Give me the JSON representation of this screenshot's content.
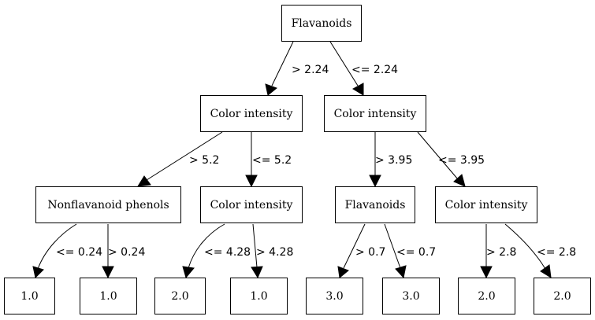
{
  "tree": {
    "nodes": [
      {
        "id": "n0",
        "label": "Flavanoids"
      },
      {
        "id": "n1",
        "label": "Color intensity"
      },
      {
        "id": "n2",
        "label": "Color intensity"
      },
      {
        "id": "n3",
        "label": "Nonflavanoid phenols"
      },
      {
        "id": "n4",
        "label": "Color intensity"
      },
      {
        "id": "n5",
        "label": "Flavanoids"
      },
      {
        "id": "n6",
        "label": "Color intensity"
      },
      {
        "id": "n7",
        "label": "1.0"
      },
      {
        "id": "n8",
        "label": "1.0"
      },
      {
        "id": "n9",
        "label": "2.0"
      },
      {
        "id": "n10",
        "label": "1.0"
      },
      {
        "id": "n11",
        "label": "3.0"
      },
      {
        "id": "n12",
        "label": "3.0"
      },
      {
        "id": "n13",
        "label": "2.0"
      },
      {
        "id": "n14",
        "label": "2.0"
      }
    ],
    "edges": [
      {
        "from": "n0",
        "to": "n1",
        "label": "> 2.24"
      },
      {
        "from": "n0",
        "to": "n2",
        "label": "<= 2.24"
      },
      {
        "from": "n1",
        "to": "n3",
        "label": "> 5.2"
      },
      {
        "from": "n1",
        "to": "n4",
        "label": "<= 5.2"
      },
      {
        "from": "n2",
        "to": "n5",
        "label": "> 3.95"
      },
      {
        "from": "n2",
        "to": "n6",
        "label": "<= 3.95"
      },
      {
        "from": "n3",
        "to": "n7",
        "label": "<= 0.24"
      },
      {
        "from": "n3",
        "to": "n8",
        "label": "> 0.24"
      },
      {
        "from": "n4",
        "to": "n9",
        "label": "<= 4.28"
      },
      {
        "from": "n4",
        "to": "n10",
        "label": "> 4.28"
      },
      {
        "from": "n5",
        "to": "n11",
        "label": "> 0.7"
      },
      {
        "from": "n5",
        "to": "n12",
        "label": "<= 0.7"
      },
      {
        "from": "n6",
        "to": "n13",
        "label": "> 2.8"
      },
      {
        "from": "n6",
        "to": "n14",
        "label": "<= 2.8"
      }
    ]
  }
}
